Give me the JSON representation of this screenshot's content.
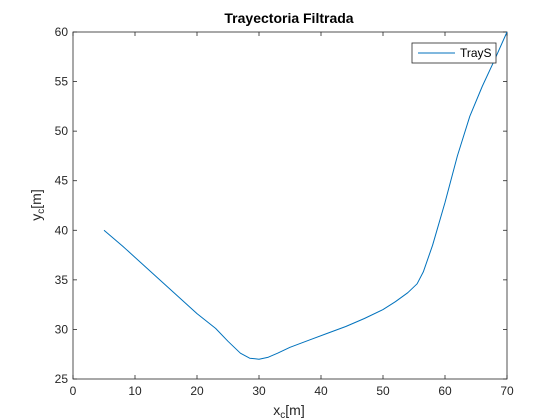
{
  "chart_data": {
    "type": "line",
    "title": "Trayectoria Filtrada",
    "xlabel": {
      "main": "x",
      "sub": "c",
      "rest": "[m]"
    },
    "ylabel": {
      "main": "y",
      "sub": "c",
      "rest": "[m]"
    },
    "xlim": [
      0,
      70
    ],
    "ylim": [
      25,
      60
    ],
    "xticks": [
      0,
      10,
      20,
      30,
      40,
      50,
      60,
      70
    ],
    "yticks": [
      25,
      30,
      35,
      40,
      45,
      50,
      55,
      60
    ],
    "xtick_labels": [
      "0",
      "10",
      "20",
      "30",
      "40",
      "50",
      "60",
      "70"
    ],
    "ytick_labels": [
      "25",
      "30",
      "35",
      "40",
      "45",
      "50",
      "55",
      "60"
    ],
    "grid": false,
    "legend_position": "top-right",
    "series": [
      {
        "name": "TrayS",
        "color": "#0072bd",
        "x": [
          5,
          8,
          11,
          14,
          17,
          20,
          23,
          25,
          27,
          28.5,
          30,
          31.5,
          33,
          35,
          38,
          41,
          44,
          47,
          50,
          52,
          54,
          55.5,
          56.5,
          58,
          60,
          62,
          64,
          66,
          68,
          70
        ],
        "y": [
          40,
          38.4,
          36.7,
          35.0,
          33.3,
          31.6,
          30.1,
          28.8,
          27.6,
          27.1,
          27.0,
          27.2,
          27.6,
          28.2,
          28.9,
          29.6,
          30.3,
          31.1,
          32.0,
          32.8,
          33.7,
          34.6,
          35.8,
          38.5,
          42.8,
          47.5,
          51.5,
          54.5,
          57.2,
          60
        ]
      }
    ]
  }
}
